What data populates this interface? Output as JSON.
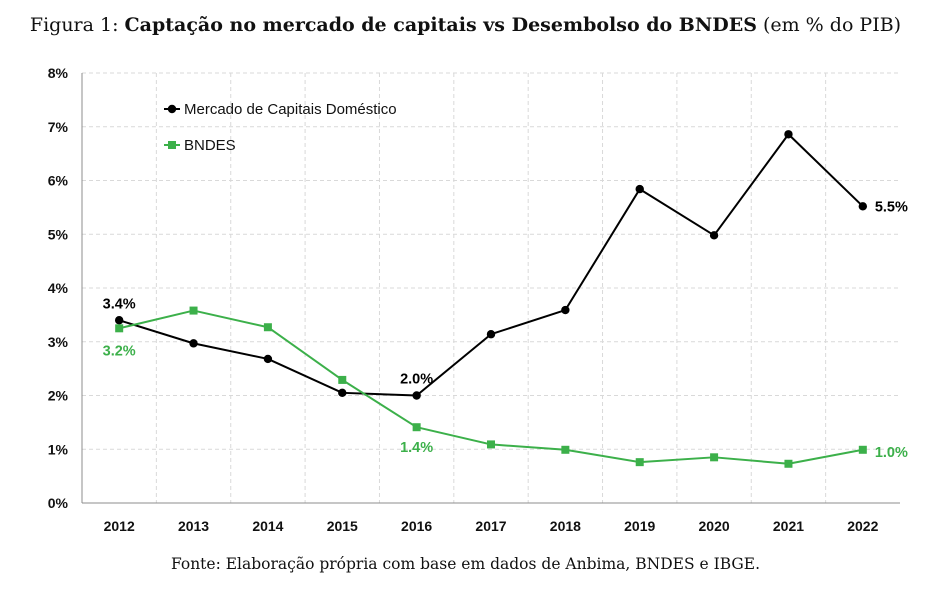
{
  "caption": {
    "prefix": "Figura 1:",
    "title": "Captação no mercado de capitais vs Desembolso do BNDES",
    "suffix": "(em % do PIB)"
  },
  "source": "Fonte: Elaboração própria com base em dados de Anbima, BNDES e IBGE.",
  "chart_data": {
    "type": "line",
    "x": [
      "2012",
      "2013",
      "2014",
      "2015",
      "2016",
      "2017",
      "2018",
      "2019",
      "2020",
      "2021",
      "2022"
    ],
    "ylim": [
      0,
      8
    ],
    "yticks": [
      "0%",
      "1%",
      "2%",
      "3%",
      "4%",
      "5%",
      "6%",
      "7%",
      "8%"
    ],
    "grid": true,
    "legend_position": "top-left",
    "series": [
      {
        "name": "Mercado de Capitais Doméstico",
        "color": "#000000",
        "marker": "circle",
        "values": [
          3.4,
          2.97,
          2.68,
          2.05,
          2.0,
          3.14,
          3.59,
          5.84,
          4.98,
          6.86,
          5.52
        ],
        "labels": [
          {
            "index": 0,
            "text": "3.4%"
          },
          {
            "index": 4,
            "text": "2.0%"
          },
          {
            "index": 10,
            "text": "5.5%"
          }
        ]
      },
      {
        "name": "BNDES",
        "color": "#3cb04a",
        "marker": "square",
        "values": [
          3.25,
          3.58,
          3.27,
          2.29,
          1.41,
          1.09,
          0.99,
          0.76,
          0.85,
          0.73,
          0.99
        ],
        "labels": [
          {
            "index": 0,
            "text": "3.2%"
          },
          {
            "index": 4,
            "text": "1.4%"
          },
          {
            "index": 10,
            "text": "1.0%"
          }
        ]
      }
    ]
  }
}
